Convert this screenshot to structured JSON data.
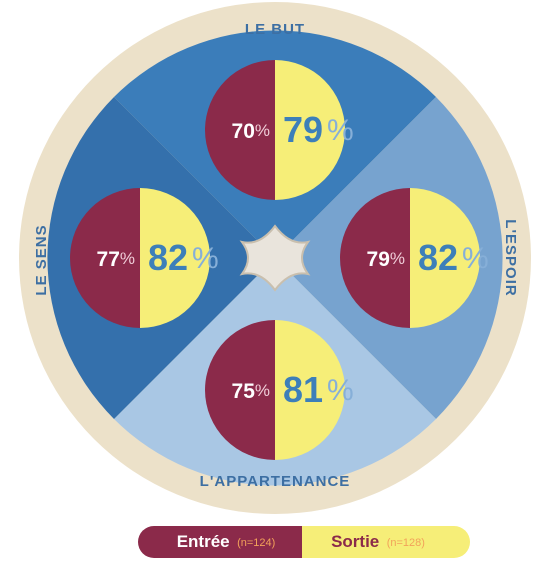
{
  "quadrants": [
    {
      "label": "LE BUT",
      "entree": 70,
      "sortie": 79
    },
    {
      "label": "LE SENS",
      "entree": 77,
      "sortie": 82
    },
    {
      "label": "L'ESPOIR",
      "entree": 79,
      "sortie": 82
    },
    {
      "label": "L'APPARTENANCE",
      "entree": 75,
      "sortie": 81
    }
  ],
  "unit": "%",
  "legend": {
    "entree": {
      "label": "Entrée",
      "n": "(n=124)"
    },
    "sortie": {
      "label": "Sortie",
      "n": "(n=128)"
    }
  }
}
